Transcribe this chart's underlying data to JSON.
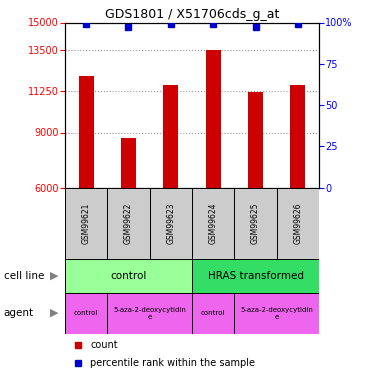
{
  "title": "GDS1801 / X51706cds_g_at",
  "samples": [
    "GSM99621",
    "GSM99622",
    "GSM99623",
    "GSM99624",
    "GSM99625",
    "GSM99626"
  ],
  "counts": [
    12100,
    8700,
    11600,
    13500,
    11200,
    11600
  ],
  "percentile_ranks": [
    99,
    97,
    99,
    99,
    97,
    99
  ],
  "ylim_left": [
    6000,
    15000
  ],
  "yticks_left": [
    6000,
    9000,
    11250,
    13500,
    15000
  ],
  "yticks_right": [
    0,
    25,
    50,
    75,
    100
  ],
  "bar_color": "#cc0000",
  "dot_color": "#0000cc",
  "bar_width": 0.35,
  "cell_line_labels": [
    {
      "text": "control",
      "start": 0,
      "end": 3,
      "color": "#99ff99"
    },
    {
      "text": "HRAS transformed",
      "start": 3,
      "end": 6,
      "color": "#33dd66"
    }
  ],
  "agent_labels": [
    {
      "text": "control",
      "start": 0,
      "end": 1,
      "color": "#ee66ee"
    },
    {
      "text": "5-aza-2-deoxycytidin\ne",
      "start": 1,
      "end": 3,
      "color": "#ee66ee"
    },
    {
      "text": "control",
      "start": 3,
      "end": 4,
      "color": "#ee66ee"
    },
    {
      "text": "5-aza-2-deoxycytidin\ne",
      "start": 4,
      "end": 6,
      "color": "#ee66ee"
    }
  ],
  "xlabel_cell_line": "cell line",
  "xlabel_agent": "agent",
  "legend_count": "count",
  "legend_percentile": "percentile rank within the sample",
  "background_color": "#ffffff",
  "grid_color": "#999999",
  "sample_box_color": "#cccccc"
}
